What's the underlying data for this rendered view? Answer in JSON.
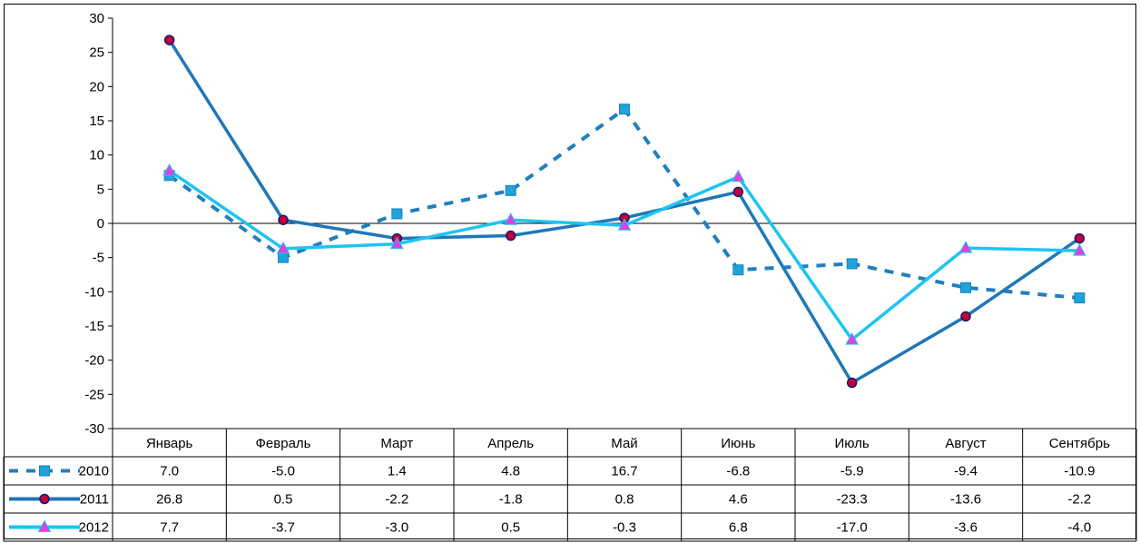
{
  "chart_data": {
    "type": "line",
    "title": "",
    "xlabel": "",
    "ylabel": "",
    "ylim": [
      -30,
      30
    ],
    "ytick_step": 5,
    "categories": [
      "Январь",
      "Февраль",
      "Март",
      "Апрель",
      "Май",
      "Июнь",
      "Июль",
      "Август",
      "Сентябрь"
    ],
    "series": [
      {
        "name": "2010",
        "values": [
          7.0,
          -5.0,
          1.4,
          4.8,
          16.7,
          -6.8,
          -5.9,
          -9.4,
          -10.9
        ],
        "value_labels": [
          "7.0",
          "-5.0",
          "1.4",
          "4.8",
          "16.7",
          "-6.8",
          "-5.9",
          "-9.4",
          "-10.9"
        ],
        "color": "#1F7FC0",
        "line_style": "dashed",
        "marker": "square",
        "marker_fill": "#1FA3DC"
      },
      {
        "name": "2011",
        "values": [
          26.8,
          0.5,
          -2.2,
          -1.8,
          0.8,
          4.6,
          -23.3,
          -13.6,
          -2.2
        ],
        "value_labels": [
          "26.8",
          "0.5",
          "-2.2",
          "-1.8",
          "0.8",
          "4.6",
          "-23.3",
          "-13.6",
          "-2.2"
        ],
        "color": "#1F77B8",
        "line_style": "solid",
        "marker": "circle",
        "marker_fill": "#C0003C",
        "marker_edge": "#1A1A6E"
      },
      {
        "name": "2012",
        "values": [
          7.7,
          -3.7,
          -3.0,
          0.5,
          -0.3,
          6.8,
          -17.0,
          -3.6,
          -4.0
        ],
        "value_labels": [
          "7.7",
          "-3.7",
          "-3.0",
          "0.5",
          "-0.3",
          "6.8",
          "-17.0",
          "-3.6",
          "-4.0"
        ],
        "color": "#1EC4F0",
        "line_style": "solid",
        "marker": "triangle",
        "marker_fill": "#E040E0"
      }
    ],
    "legend": "data-table-below",
    "grid": false
  }
}
